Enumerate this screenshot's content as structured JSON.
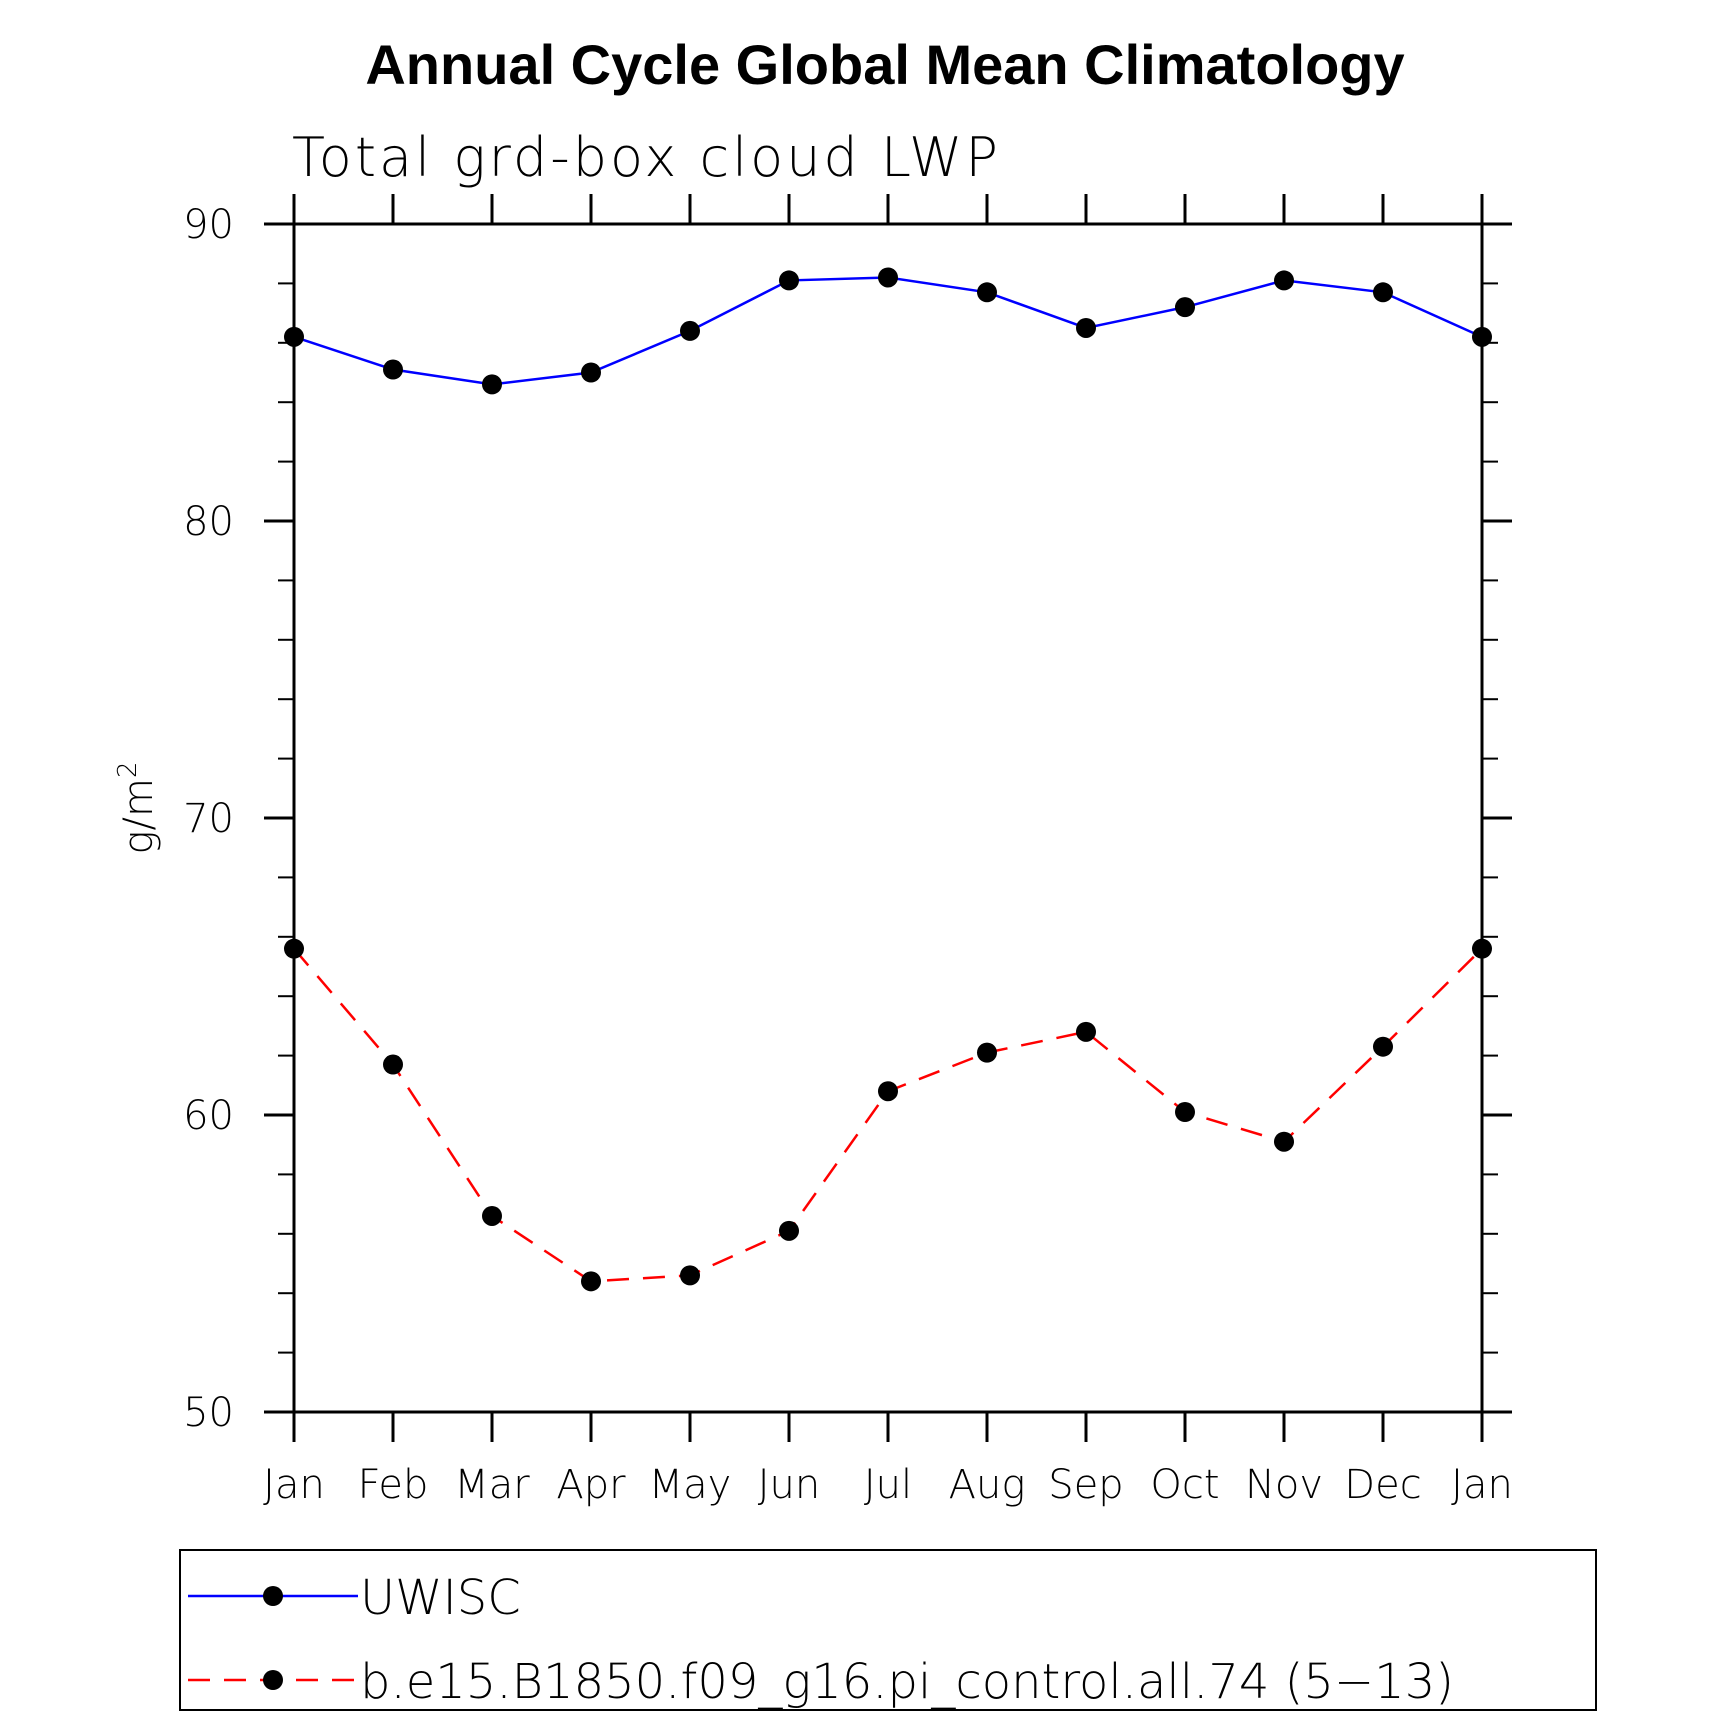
{
  "chart_data": {
    "type": "line",
    "title": "Annual Cycle Global Mean Climatology",
    "subtitle": "Total grd-box cloud LWP",
    "ylabel": "g/m",
    "ylabel_superscript": "2",
    "xlabel": "",
    "categories": [
      "Jan",
      "Feb",
      "Mar",
      "Apr",
      "May",
      "Jun",
      "Jul",
      "Aug",
      "Sep",
      "Oct",
      "Nov",
      "Dec",
      "Jan"
    ],
    "ylim": [
      50,
      90
    ],
    "yticks": [
      50,
      60,
      70,
      80,
      90
    ],
    "yticks_labels": [
      "50",
      "60",
      "70",
      "80",
      "90"
    ],
    "grid": false,
    "legend_position": "bottom",
    "series": [
      {
        "name": "UWISC",
        "color": "#0000ff",
        "line_style": "solid",
        "marker": "filled-circle",
        "values": [
          86.2,
          85.1,
          84.6,
          85.0,
          86.4,
          88.1,
          88.2,
          87.7,
          86.5,
          87.2,
          88.1,
          87.7,
          86.2
        ]
      },
      {
        "name": "b.e15.B1850.f09_g16.pi_control.all.74 (5−13)",
        "color": "#ff0000",
        "line_style": "dashed",
        "marker": "filled-circle",
        "values": [
          65.6,
          61.7,
          56.6,
          54.4,
          54.6,
          56.1,
          60.8,
          62.1,
          62.8,
          60.1,
          59.1,
          62.3,
          65.6
        ]
      }
    ]
  }
}
